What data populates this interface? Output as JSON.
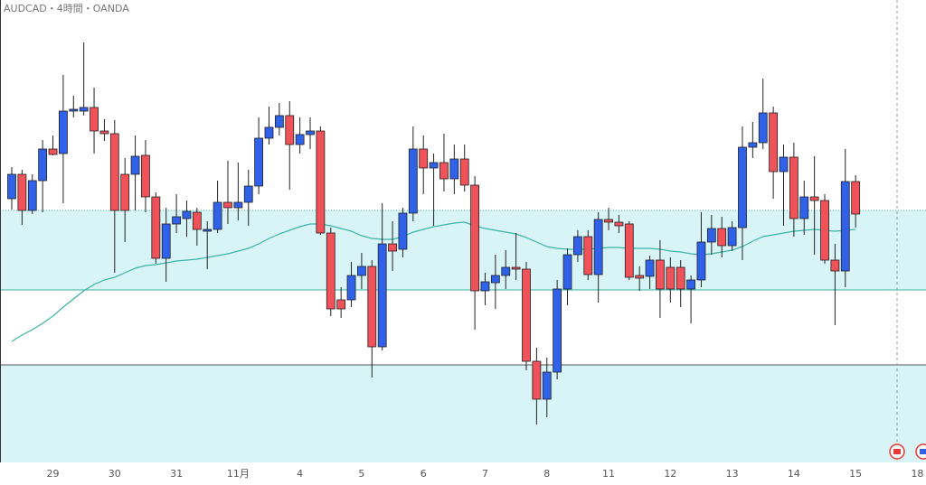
{
  "chart_data": {
    "type": "candlestick",
    "title": "AUDCAD・4時間・OANDA",
    "categories": [
      null,
      null,
      null,
      null,
      "29",
      null,
      null,
      null,
      null,
      null,
      "30",
      null,
      null,
      null,
      null,
      null,
      "31",
      null,
      null,
      null,
      null,
      null,
      "11月",
      null,
      null,
      null,
      null,
      null,
      "4",
      null,
      null,
      null,
      null,
      null,
      "5",
      null,
      null,
      null,
      null,
      null,
      "6",
      null,
      null,
      null,
      null,
      null,
      "7",
      null,
      null,
      null,
      null,
      null,
      "8",
      null,
      null,
      null,
      null,
      null,
      "11",
      null,
      null,
      null,
      null,
      null,
      "12",
      null,
      null,
      null,
      null,
      null,
      "13",
      null,
      null,
      null,
      null,
      null,
      "14",
      null,
      null,
      null,
      null,
      null,
      "15",
      null,
      null,
      null,
      null,
      null,
      "18"
    ],
    "open": [
      0.9156,
      0.91614,
      0.91534,
      0.916,
      0.9167,
      0.9166,
      0.91754,
      0.91754,
      0.91762,
      0.9171,
      0.91704,
      0.91614,
      0.91614,
      0.91656,
      0.91564,
      0.91428,
      0.91504,
      0.91516,
      0.9153,
      0.91488,
      0.91492,
      0.91552,
      0.9154,
      0.91552,
      0.91588,
      0.91694,
      0.91718,
      0.91744,
      0.9168,
      0.91702,
      0.9171,
      0.91484,
      0.91336,
      0.91336,
      0.9139,
      0.9141,
      0.91232,
      0.9146,
      0.91448,
      0.91528,
      0.9167,
      0.91628,
      0.9164,
      0.91604,
      0.91648,
      0.9159,
      0.91356,
      0.91374,
      0.9139,
      0.91408,
      0.91404,
      0.912,
      0.91116,
      0.91176,
      0.9136,
      0.91436,
      0.91476,
      0.91392,
      0.91514,
      0.91508,
      0.91504,
      0.9139,
      0.91388,
      0.91424,
      0.91408,
      0.91408,
      0.9136,
      0.9138,
      0.91464,
      0.91494,
      0.91456,
      0.91496,
      0.91674,
      0.91684,
      0.9175,
      0.9162,
      0.91652,
      0.91516,
      0.91564,
      0.91556,
      0.91424,
      0.914,
      0.91598,
      null,
      null,
      null,
      null,
      null,
      null
    ],
    "high": [
      0.9163,
      0.91624,
      0.91614,
      0.9169,
      0.917,
      0.91834,
      0.91788,
      0.91906,
      0.91806,
      0.91736,
      0.91734,
      0.9165,
      0.917,
      0.9169,
      0.91574,
      0.9154,
      0.9157,
      0.91556,
      0.9154,
      0.9151,
      0.916,
      0.91644,
      0.9164,
      0.91624,
      0.9174,
      0.91764,
      0.91772,
      0.91776,
      0.9174,
      0.9174,
      0.9172,
      0.91496,
      0.91364,
      0.9142,
      0.9144,
      0.91424,
      0.9155,
      0.9151,
      0.9154,
      0.9172,
      0.917,
      0.9166,
      0.91704,
      0.9168,
      0.9168,
      0.9161,
      0.91396,
      0.91436,
      0.91446,
      0.91484,
      0.9142,
      0.9123,
      0.91208,
      0.9138,
      0.9145,
      0.9149,
      0.9149,
      0.9153,
      0.9154,
      0.91524,
      0.9151,
      0.9141,
      0.91434,
      0.91468,
      0.9143,
      0.91424,
      0.9139,
      0.9153,
      0.91524,
      0.9152,
      0.9151,
      0.9172,
      0.9173,
      0.91826,
      0.91764,
      0.9168,
      0.91684,
      0.916,
      0.91654,
      0.9157,
      0.9146,
      0.9167,
      0.91612,
      null,
      null,
      null,
      null,
      null,
      null
    ],
    "low": [
      0.91536,
      0.91502,
      0.91526,
      0.9153,
      0.91656,
      0.9155,
      0.9174,
      0.91744,
      0.9166,
      0.91688,
      0.91396,
      0.91464,
      0.91534,
      0.9153,
      0.91416,
      0.91376,
      0.91484,
      0.91476,
      0.91456,
      0.91404,
      0.91484,
      0.91504,
      0.91512,
      0.915,
      0.9157,
      0.9168,
      0.917,
      0.9158,
      0.9166,
      0.9167,
      0.9148,
      0.913,
      0.91296,
      0.9132,
      0.9136,
      0.91164,
      0.91224,
      0.914,
      0.9143,
      0.9151,
      0.9157,
      0.915,
      0.91576,
      0.9157,
      0.91576,
      0.9127,
      0.91324,
      0.91316,
      0.9136,
      0.9138,
      0.9118,
      0.9106,
      0.91076,
      0.9116,
      0.91324,
      0.9142,
      0.9138,
      0.9133,
      0.9149,
      0.91484,
      0.9138,
      0.91356,
      0.9136,
      0.91296,
      0.9133,
      0.9132,
      0.91284,
      0.91364,
      0.91436,
      0.9143,
      0.91444,
      0.91424,
      0.9165,
      0.9167,
      0.9156,
      0.915,
      0.91476,
      0.9148,
      0.91436,
      0.91416,
      0.9128,
      0.91364,
      0.91496,
      null,
      null,
      null,
      null,
      null,
      null
    ],
    "close": [
      0.91614,
      0.91534,
      0.916,
      0.9167,
      0.91658,
      0.91754,
      0.91758,
      0.91762,
      0.9171,
      0.91704,
      0.91534,
      0.91534,
      0.91654,
      0.91564,
      0.91428,
      0.91504,
      0.9152,
      0.91532,
      0.91492,
      0.91492,
      0.91552,
      0.9154,
      0.91552,
      0.91588,
      0.91694,
      0.91718,
      0.91744,
      0.9168,
      0.91702,
      0.9171,
      0.91484,
      0.91316,
      0.91316,
      0.9139,
      0.9141,
      0.91232,
      0.9146,
      0.91444,
      0.91528,
      0.9167,
      0.91628,
      0.9164,
      0.91604,
      0.91648,
      0.9159,
      0.91356,
      0.91376,
      0.9139,
      0.91408,
      0.91404,
      0.912,
      0.91116,
      0.91176,
      0.9136,
      0.91436,
      0.91476,
      0.91392,
      0.91514,
      0.91508,
      0.915,
      0.91386,
      0.91384,
      0.91424,
      0.9136,
      0.9136,
      0.9136,
      0.9138,
      0.91464,
      0.91494,
      0.91456,
      0.91496,
      0.91674,
      0.91684,
      0.9175,
      0.9162,
      0.91652,
      0.91516,
      0.91564,
      0.91556,
      0.91424,
      0.914,
      0.91598,
      0.91526,
      null,
      null,
      null,
      null,
      null,
      null
    ],
    "ma": {
      "color": "#3bb5a6",
      "values": [
        0.91244,
        0.91258,
        0.9127,
        0.91284,
        0.913,
        0.9132,
        0.91338,
        0.91356,
        0.9137,
        0.9138,
        0.91386,
        0.91396,
        0.91406,
        0.91412,
        0.91414,
        0.91418,
        0.91422,
        0.91424,
        0.91426,
        0.9143,
        0.91434,
        0.91438,
        0.91444,
        0.9145,
        0.9146,
        0.91472,
        0.91482,
        0.9149,
        0.91498,
        0.91504,
        0.91504,
        0.915,
        0.91494,
        0.91488,
        0.91478,
        0.91472,
        0.9147,
        0.9147,
        0.91476,
        0.91486,
        0.91492,
        0.91498,
        0.91502,
        0.91506,
        0.91508,
        0.915,
        0.91494,
        0.9149,
        0.91486,
        0.91482,
        0.91474,
        0.91464,
        0.91454,
        0.9145,
        0.91448,
        0.91448,
        0.91448,
        0.9145,
        0.91452,
        0.91452,
        0.9145,
        0.9145,
        0.9145,
        0.91448,
        0.91444,
        0.91442,
        0.91438,
        0.91436,
        0.91438,
        0.91442,
        0.91446,
        0.91454,
        0.91466,
        0.91476,
        0.9148,
        0.91484,
        0.91488,
        0.9149,
        0.91492,
        0.9149,
        0.91488,
        0.9149,
        0.91492,
        null,
        null,
        null,
        null,
        null,
        null
      ]
    },
    "up_color": "#2f62e8",
    "down_color": "#f0525a",
    "zones": [
      {
        "from": 0.91358,
        "to": 0.91534,
        "fill": "#d9f4f7",
        "line": "#3bb5a6"
      },
      {
        "from": 0.90976,
        "to": 0.91192,
        "fill": "#d9f4f7",
        "line": "#555555"
      }
    ],
    "ylim": [
      0.90976,
      0.92
    ]
  }
}
